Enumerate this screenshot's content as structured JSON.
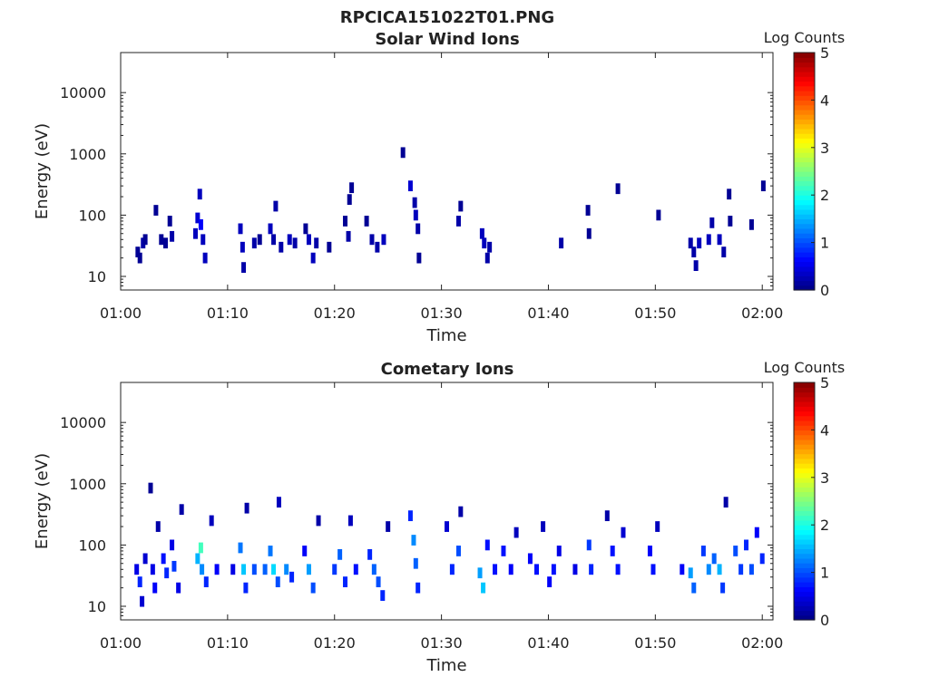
{
  "figure": {
    "title": "RPCICA151022T01.PNG"
  },
  "colorbar": {
    "label": "Log Counts",
    "ticks": [
      "0",
      "1",
      "2",
      "3",
      "4",
      "5"
    ],
    "range": [
      0,
      5
    ],
    "colormap": "jet"
  },
  "chart_data": [
    {
      "type": "heatmap",
      "title": "Solar Wind Ions",
      "xlabel": "Time",
      "ylabel": "Energy (eV)",
      "xlim": [
        "01:00",
        "02:01"
      ],
      "x_ticks": [
        "01:00",
        "01:10",
        "01:20",
        "01:30",
        "01:40",
        "01:50",
        "02:00"
      ],
      "y_scale": "log",
      "ylim": [
        6,
        45000
      ],
      "y_ticks": [
        "10",
        "100",
        "1000",
        "10000"
      ],
      "grid": false,
      "cells": [
        [
          1.6,
          25,
          0.1
        ],
        [
          1.8,
          20,
          0.1
        ],
        [
          2.1,
          35,
          0.2
        ],
        [
          2.3,
          40,
          0.1
        ],
        [
          3.3,
          120,
          0.1
        ],
        [
          3.8,
          40,
          0.1
        ],
        [
          4.2,
          35,
          0.1
        ],
        [
          4.6,
          80,
          0.1
        ],
        [
          4.8,
          45,
          0.2
        ],
        [
          7.0,
          50,
          0.3
        ],
        [
          7.2,
          90,
          0.4
        ],
        [
          7.4,
          220,
          0.3
        ],
        [
          7.5,
          70,
          0.6
        ],
        [
          7.7,
          40,
          0.3
        ],
        [
          7.9,
          20,
          0.3
        ],
        [
          11.2,
          60,
          0.3
        ],
        [
          11.4,
          30,
          0.3
        ],
        [
          11.5,
          14,
          0.2
        ],
        [
          12.5,
          35,
          0.2
        ],
        [
          13.0,
          40,
          0.1
        ],
        [
          14.0,
          60,
          0.3
        ],
        [
          14.3,
          40,
          0.2
        ],
        [
          14.5,
          140,
          0.2
        ],
        [
          15.0,
          30,
          0.2
        ],
        [
          15.8,
          40,
          0.3
        ],
        [
          16.3,
          35,
          0.2
        ],
        [
          17.3,
          60,
          0.1
        ],
        [
          17.6,
          40,
          0.3
        ],
        [
          18.0,
          20,
          0.3
        ],
        [
          18.3,
          35,
          0.2
        ],
        [
          19.5,
          30,
          0.1
        ],
        [
          21.0,
          80,
          0.1
        ],
        [
          21.3,
          45,
          0.2
        ],
        [
          21.4,
          180,
          0.1
        ],
        [
          21.6,
          280,
          0.1
        ],
        [
          23.0,
          80,
          0.1
        ],
        [
          23.5,
          40,
          0.2
        ],
        [
          24.0,
          30,
          0.2
        ],
        [
          24.6,
          40,
          0.3
        ],
        [
          26.4,
          1050,
          0.1
        ],
        [
          27.1,
          300,
          0.4
        ],
        [
          27.5,
          160,
          0.2
        ],
        [
          27.6,
          100,
          0.3
        ],
        [
          27.8,
          60,
          0.2
        ],
        [
          27.9,
          20,
          0.1
        ],
        [
          31.6,
          80,
          0.2
        ],
        [
          31.8,
          140,
          0.1
        ],
        [
          33.8,
          50,
          0.3
        ],
        [
          34.0,
          35,
          0.3
        ],
        [
          34.3,
          20,
          0.2
        ],
        [
          34.5,
          30,
          0.2
        ],
        [
          41.2,
          35,
          0.2
        ],
        [
          43.7,
          120,
          0.1
        ],
        [
          43.8,
          50,
          0.1
        ],
        [
          46.5,
          270,
          0.1
        ],
        [
          50.3,
          100,
          0.1
        ],
        [
          53.3,
          35,
          0.2
        ],
        [
          53.6,
          25,
          0.2
        ],
        [
          53.8,
          15,
          0.2
        ],
        [
          54.1,
          35,
          0.3
        ],
        [
          55.0,
          40,
          0.3
        ],
        [
          55.3,
          75,
          0.2
        ],
        [
          56.0,
          40,
          0.3
        ],
        [
          56.4,
          25,
          0.2
        ],
        [
          56.9,
          220,
          0.1
        ],
        [
          57.0,
          80,
          0.1
        ],
        [
          59.0,
          70,
          0.1
        ],
        [
          60.1,
          300,
          0.1
        ]
      ]
    },
    {
      "type": "heatmap",
      "title": "Cometary Ions",
      "xlabel": "Time",
      "ylabel": "Energy (eV)",
      "xlim": [
        "01:00",
        "02:01"
      ],
      "x_ticks": [
        "01:00",
        "01:10",
        "01:20",
        "01:30",
        "01:40",
        "01:50",
        "02:00"
      ],
      "y_scale": "log",
      "ylim": [
        6,
        45000
      ],
      "y_ticks": [
        "10",
        "100",
        "1000",
        "10000"
      ],
      "grid": false,
      "cells": [
        [
          1.5,
          40,
          0.5
        ],
        [
          1.8,
          25,
          0.8
        ],
        [
          2.0,
          12,
          0.4
        ],
        [
          2.3,
          60,
          0.4
        ],
        [
          2.8,
          850,
          0.1
        ],
        [
          3.0,
          40,
          0.5
        ],
        [
          3.2,
          20,
          0.6
        ],
        [
          3.5,
          200,
          0.2
        ],
        [
          4.0,
          60,
          0.7
        ],
        [
          4.3,
          35,
          0.8
        ],
        [
          4.8,
          100,
          0.5
        ],
        [
          5.0,
          45,
          0.9
        ],
        [
          5.4,
          20,
          0.5
        ],
        [
          5.7,
          380,
          0.2
        ],
        [
          7.2,
          60,
          1.5
        ],
        [
          7.5,
          90,
          2.2
        ],
        [
          7.6,
          40,
          1.3
        ],
        [
          8.0,
          25,
          0.8
        ],
        [
          8.5,
          250,
          0.3
        ],
        [
          9.0,
          40,
          0.6
        ],
        [
          10.5,
          40,
          0.5
        ],
        [
          11.2,
          90,
          1.2
        ],
        [
          11.5,
          40,
          1.6
        ],
        [
          11.7,
          20,
          0.8
        ],
        [
          11.8,
          400,
          0.2
        ],
        [
          12.5,
          40,
          1.0
        ],
        [
          13.5,
          40,
          1.1
        ],
        [
          14.0,
          80,
          1.2
        ],
        [
          14.3,
          40,
          1.7
        ],
        [
          14.7,
          25,
          1.0
        ],
        [
          14.8,
          500,
          0.3
        ],
        [
          15.5,
          40,
          1.3
        ],
        [
          16.0,
          30,
          0.8
        ],
        [
          17.2,
          80,
          0.6
        ],
        [
          17.6,
          40,
          1.4
        ],
        [
          18.0,
          20,
          1.0
        ],
        [
          18.5,
          250,
          0.2
        ],
        [
          20.0,
          40,
          0.9
        ],
        [
          20.5,
          70,
          1.1
        ],
        [
          21.0,
          25,
          0.8
        ],
        [
          21.5,
          250,
          0.3
        ],
        [
          22.0,
          40,
          0.7
        ],
        [
          23.3,
          70,
          0.8
        ],
        [
          23.7,
          40,
          1.1
        ],
        [
          24.1,
          25,
          1.0
        ],
        [
          24.5,
          15,
          0.8
        ],
        [
          25.0,
          200,
          0.2
        ],
        [
          27.1,
          300,
          0.8
        ],
        [
          27.4,
          120,
          1.3
        ],
        [
          27.6,
          50,
          1.1
        ],
        [
          27.8,
          20,
          0.8
        ],
        [
          30.5,
          200,
          0.4
        ],
        [
          31.0,
          40,
          0.8
        ],
        [
          31.6,
          80,
          1.0
        ],
        [
          31.8,
          350,
          0.2
        ],
        [
          33.6,
          35,
          1.4
        ],
        [
          33.9,
          20,
          1.6
        ],
        [
          34.3,
          100,
          0.7
        ],
        [
          35.0,
          40,
          0.7
        ],
        [
          35.8,
          80,
          0.7
        ],
        [
          36.5,
          40,
          0.6
        ],
        [
          37.0,
          160,
          0.3
        ],
        [
          38.3,
          60,
          0.6
        ],
        [
          38.9,
          40,
          0.7
        ],
        [
          39.5,
          200,
          0.3
        ],
        [
          40.1,
          25,
          0.6
        ],
        [
          40.5,
          40,
          0.7
        ],
        [
          41.0,
          80,
          0.5
        ],
        [
          42.5,
          40,
          0.5
        ],
        [
          43.8,
          100,
          0.9
        ],
        [
          44.0,
          40,
          0.8
        ],
        [
          45.5,
          300,
          0.2
        ],
        [
          46.0,
          80,
          0.7
        ],
        [
          46.5,
          40,
          0.7
        ],
        [
          47.0,
          160,
          0.4
        ],
        [
          49.5,
          80,
          0.6
        ],
        [
          49.8,
          40,
          0.7
        ],
        [
          50.2,
          200,
          0.3
        ],
        [
          52.5,
          40,
          0.6
        ],
        [
          53.3,
          35,
          1.4
        ],
        [
          53.6,
          20,
          1.1
        ],
        [
          54.5,
          80,
          0.9
        ],
        [
          55.0,
          40,
          1.3
        ],
        [
          55.5,
          60,
          1.1
        ],
        [
          56.0,
          40,
          1.5
        ],
        [
          56.3,
          20,
          0.9
        ],
        [
          56.6,
          500,
          0.2
        ],
        [
          57.5,
          80,
          1.0
        ],
        [
          58.0,
          40,
          0.9
        ],
        [
          58.5,
          100,
          0.8
        ],
        [
          59.0,
          40,
          1.0
        ],
        [
          59.5,
          160,
          0.6
        ],
        [
          60.0,
          60,
          0.8
        ]
      ]
    }
  ]
}
